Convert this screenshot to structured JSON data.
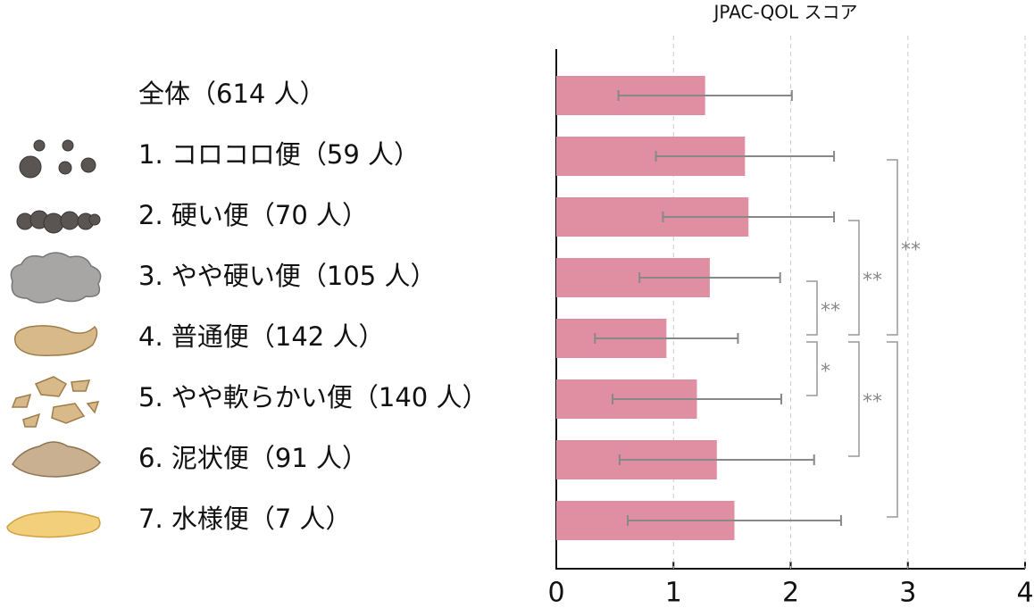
{
  "chart_data": {
    "type": "bar",
    "orientation": "horizontal",
    "x_label": "JPAC-QOL スコア",
    "categories": [
      "全体（614 人）",
      "1. コロコロ便（59 人）",
      "2. 硬い便（70 人）",
      "3. やや硬い便（105 人）",
      "4. 普通便（142 人）",
      "5. やや軟らかい便（140 人）",
      "6. 泥状便（91 人）",
      "7. 水様便（7 人）"
    ],
    "values": [
      1.27,
      1.61,
      1.64,
      1.31,
      0.94,
      1.2,
      1.37,
      1.52
    ],
    "errors": [
      0.74,
      0.76,
      0.73,
      0.6,
      0.61,
      0.72,
      0.83,
      0.91
    ],
    "color": "#e08fa3",
    "error_color": "#888888",
    "xlim": [
      0,
      4
    ],
    "xticks": [
      0,
      1,
      2,
      3,
      4
    ],
    "grid": true,
    "comparisons": [
      {
        "from": 3,
        "to": 4,
        "label": "**"
      },
      {
        "from": 4,
        "to": 5,
        "label": "*"
      },
      {
        "from": 2,
        "to": 4,
        "label": "**"
      },
      {
        "from": 4,
        "to": 6,
        "label": "**"
      },
      {
        "from": 1,
        "to": 4,
        "label": "**"
      },
      {
        "from": 4,
        "to": 7
      }
    ]
  }
}
